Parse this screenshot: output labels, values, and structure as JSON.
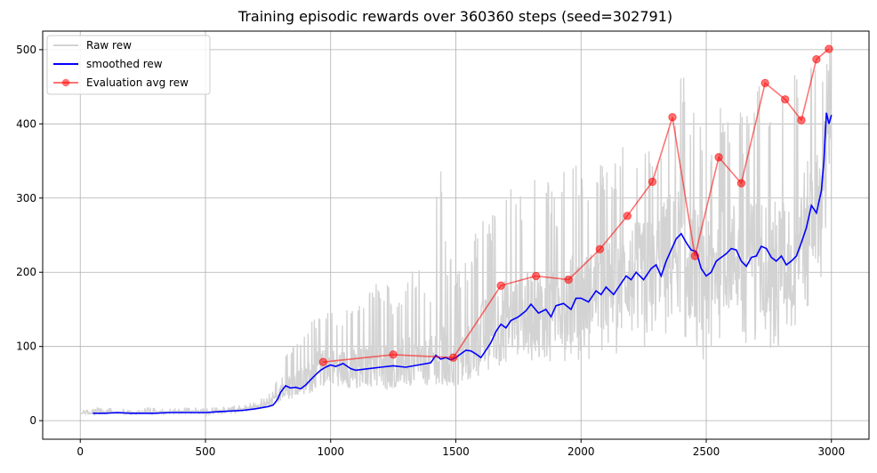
{
  "chart_data": {
    "type": "line",
    "title": "Training episodic rewards over 360360 steps (seed=302791)",
    "xlabel": "",
    "ylabel": "",
    "xlim": [
      -150,
      3150
    ],
    "ylim": [
      -25,
      525
    ],
    "xticks": [
      0,
      500,
      1000,
      1500,
      2000,
      2500,
      3000
    ],
    "yticks": [
      0,
      100,
      200,
      300,
      400,
      500
    ],
    "grid": true,
    "legend_position": "top-left",
    "series": [
      {
        "name": "Raw rew",
        "color": "#d3d3d3",
        "kind": "raw",
        "x": [
          0,
          50,
          100,
          150,
          200,
          250,
          300,
          350,
          400,
          450,
          500,
          550,
          600,
          650,
          700,
          750,
          780,
          800,
          820,
          850,
          900,
          950,
          1000,
          1050,
          1100,
          1150,
          1200,
          1250,
          1300,
          1350,
          1400,
          1440,
          1450,
          1500,
          1550,
          1600,
          1650,
          1700,
          1750,
          1800,
          1850,
          1900,
          1950,
          2000,
          2050,
          2100,
          2150,
          2200,
          2250,
          2300,
          2350,
          2400,
          2450,
          2500,
          2550,
          2600,
          2650,
          2700,
          2750,
          2800,
          2850,
          2900,
          2950,
          3000
        ],
        "y": [
          10,
          11,
          12,
          11,
          10,
          11,
          12,
          11,
          12,
          12,
          11,
          12,
          13,
          15,
          18,
          22,
          30,
          45,
          50,
          48,
          55,
          70,
          75,
          72,
          68,
          74,
          76,
          73,
          78,
          76,
          80,
          85,
          82,
          80,
          90,
          110,
          130,
          135,
          140,
          150,
          145,
          150,
          160,
          165,
          175,
          180,
          190,
          200,
          205,
          210,
          240,
          230,
          215,
          195,
          215,
          225,
          210,
          225,
          220,
          215,
          230,
          270,
          290,
          410
        ],
        "y_low": [
          8,
          8,
          9,
          8,
          8,
          9,
          9,
          8,
          9,
          9,
          8,
          9,
          10,
          11,
          13,
          15,
          18,
          25,
          28,
          30,
          35,
          40,
          45,
          40,
          38,
          45,
          42,
          40,
          45,
          44,
          48,
          50,
          48,
          45,
          55,
          60,
          70,
          75,
          70,
          80,
          70,
          75,
          70,
          85,
          80,
          90,
          85,
          100,
          95,
          90,
          110,
          100,
          80,
          70,
          90,
          100,
          85,
          100,
          95,
          80,
          110,
          150,
          160,
          270
        ],
        "y_high": [
          14,
          16,
          18,
          16,
          14,
          17,
          18,
          16,
          18,
          18,
          17,
          19,
          19,
          22,
          28,
          34,
          50,
          90,
          95,
          100,
          125,
          150,
          150,
          150,
          165,
          170,
          200,
          170,
          200,
          210,
          180,
          410,
          260,
          200,
          230,
          280,
          290,
          330,
          300,
          320,
          350,
          300,
          360,
          340,
          330,
          370,
          360,
          400,
          380,
          380,
          420,
          500,
          430,
          380,
          420,
          440,
          420,
          450,
          460,
          440,
          480,
          500,
          500,
          500
        ]
      },
      {
        "name": "smoothed rew",
        "color": "#0000ff",
        "kind": "line",
        "x": [
          50,
          100,
          150,
          200,
          250,
          300,
          350,
          400,
          450,
          500,
          550,
          600,
          650,
          700,
          750,
          770,
          780,
          790,
          800,
          820,
          840,
          860,
          880,
          900,
          920,
          940,
          960,
          980,
          1000,
          1020,
          1050,
          1080,
          1100,
          1150,
          1200,
          1250,
          1300,
          1350,
          1400,
          1420,
          1440,
          1460,
          1480,
          1500,
          1520,
          1540,
          1560,
          1580,
          1600,
          1620,
          1640,
          1660,
          1680,
          1700,
          1720,
          1750,
          1780,
          1800,
          1830,
          1860,
          1880,
          1900,
          1930,
          1960,
          1980,
          2000,
          2030,
          2060,
          2080,
          2100,
          2130,
          2150,
          2180,
          2200,
          2220,
          2250,
          2280,
          2300,
          2320,
          2340,
          2360,
          2380,
          2400,
          2420,
          2440,
          2460,
          2480,
          2500,
          2520,
          2540,
          2560,
          2580,
          2600,
          2620,
          2640,
          2660,
          2680,
          2700,
          2720,
          2740,
          2760,
          2780,
          2800,
          2820,
          2840,
          2860,
          2880,
          2900,
          2920,
          2940,
          2960,
          2970,
          2980,
          2990,
          3000
        ],
        "y": [
          10,
          10,
          11,
          10,
          10,
          10,
          11,
          11,
          11,
          11,
          12,
          13,
          14,
          16,
          19,
          21,
          25,
          30,
          38,
          47,
          44,
          45,
          43,
          48,
          55,
          62,
          68,
          72,
          75,
          73,
          77,
          70,
          68,
          70,
          72,
          74,
          72,
          75,
          78,
          88,
          83,
          85,
          82,
          85,
          90,
          95,
          94,
          90,
          85,
          95,
          105,
          120,
          130,
          125,
          135,
          140,
          148,
          157,
          145,
          150,
          140,
          155,
          158,
          150,
          165,
          165,
          160,
          175,
          170,
          180,
          170,
          180,
          195,
          190,
          200,
          190,
          205,
          210,
          195,
          215,
          230,
          245,
          252,
          240,
          230,
          228,
          205,
          195,
          200,
          215,
          220,
          225,
          232,
          230,
          215,
          208,
          220,
          222,
          235,
          232,
          220,
          215,
          222,
          210,
          215,
          222,
          240,
          260,
          290,
          280,
          310,
          350,
          415,
          400,
          412
        ]
      },
      {
        "name": "Evaluation avg rew",
        "color": "#ff0000",
        "kind": "markers",
        "x": [
          970,
          1250,
          1490,
          1680,
          1820,
          1950,
          2075,
          2185,
          2285,
          2365,
          2455,
          2550,
          2640,
          2735,
          2815,
          2880,
          2940,
          2990
        ],
        "y": [
          79,
          89,
          85,
          182,
          195,
          190,
          231,
          276,
          322,
          409,
          222,
          355,
          320,
          455,
          433,
          405,
          487,
          501
        ]
      }
    ]
  }
}
